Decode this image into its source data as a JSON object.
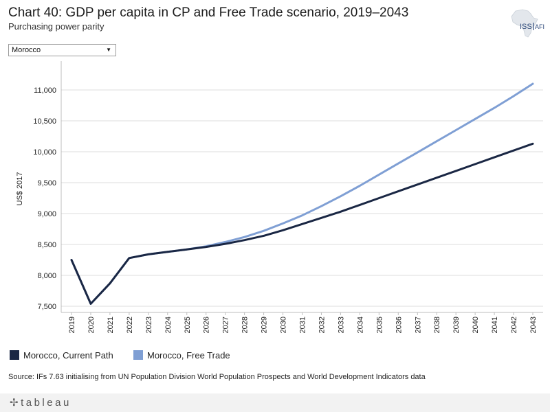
{
  "header": {
    "title": "Chart 40: GDP per capita in CP and Free Trade scenario, 2019–2043",
    "subtitle": "Purchasing power parity"
  },
  "logo": {
    "text_iss": "ISS",
    "text_afi": "AFI"
  },
  "filter": {
    "selected": "Morocco"
  },
  "chart_data": {
    "type": "line",
    "title": "Chart 40: GDP per capita in CP and Free Trade scenario, 2019–2043",
    "subtitle": "Purchasing power parity",
    "xlabel": "",
    "ylabel": "US$ 2017",
    "ylim": [
      7400,
      11400
    ],
    "yticks": [
      7500,
      8000,
      8500,
      9000,
      9500,
      10000,
      10500,
      11000
    ],
    "ytick_labels": [
      "7,500",
      "8,000",
      "8,500",
      "9,000",
      "9,500",
      "10,000",
      "10,500",
      "11,000"
    ],
    "x": [
      "2019",
      "2020",
      "2021",
      "2022",
      "2023",
      "2024",
      "2025",
      "2026",
      "2027",
      "2028",
      "2029",
      "2030",
      "2031",
      "2032",
      "2033",
      "2034",
      "2035",
      "2036",
      "2037",
      "2038",
      "2039",
      "2040",
      "2041",
      "2042",
      "2043"
    ],
    "grid": true,
    "series": [
      {
        "name": "Morocco, Current Path",
        "color": "#1a2744",
        "values": [
          8250,
          7540,
          7870,
          8280,
          8340,
          8380,
          8420,
          8460,
          8510,
          8570,
          8640,
          8730,
          8830,
          8930,
          9030,
          9140,
          9250,
          9360,
          9470,
          9580,
          9690,
          9800,
          9910,
          10020,
          10130
        ]
      },
      {
        "name": "Morocco, Free Trade",
        "color": "#7f9fd4",
        "values": [
          8250,
          7540,
          7870,
          8280,
          8340,
          8380,
          8420,
          8470,
          8540,
          8620,
          8720,
          8840,
          8970,
          9120,
          9280,
          9450,
          9630,
          9810,
          9990,
          10170,
          10350,
          10530,
          10710,
          10900,
          11100
        ]
      }
    ]
  },
  "legend": {
    "items": [
      {
        "label": "Morocco, Current Path",
        "color": "#1a2744"
      },
      {
        "label": "Morocco, Free Trade",
        "color": "#7f9fd4"
      }
    ]
  },
  "source": "Source: IFs 7.63 initialising from UN Population Division World Population Prospects and World Development Indicators data",
  "footer": {
    "brand": "tableau"
  }
}
